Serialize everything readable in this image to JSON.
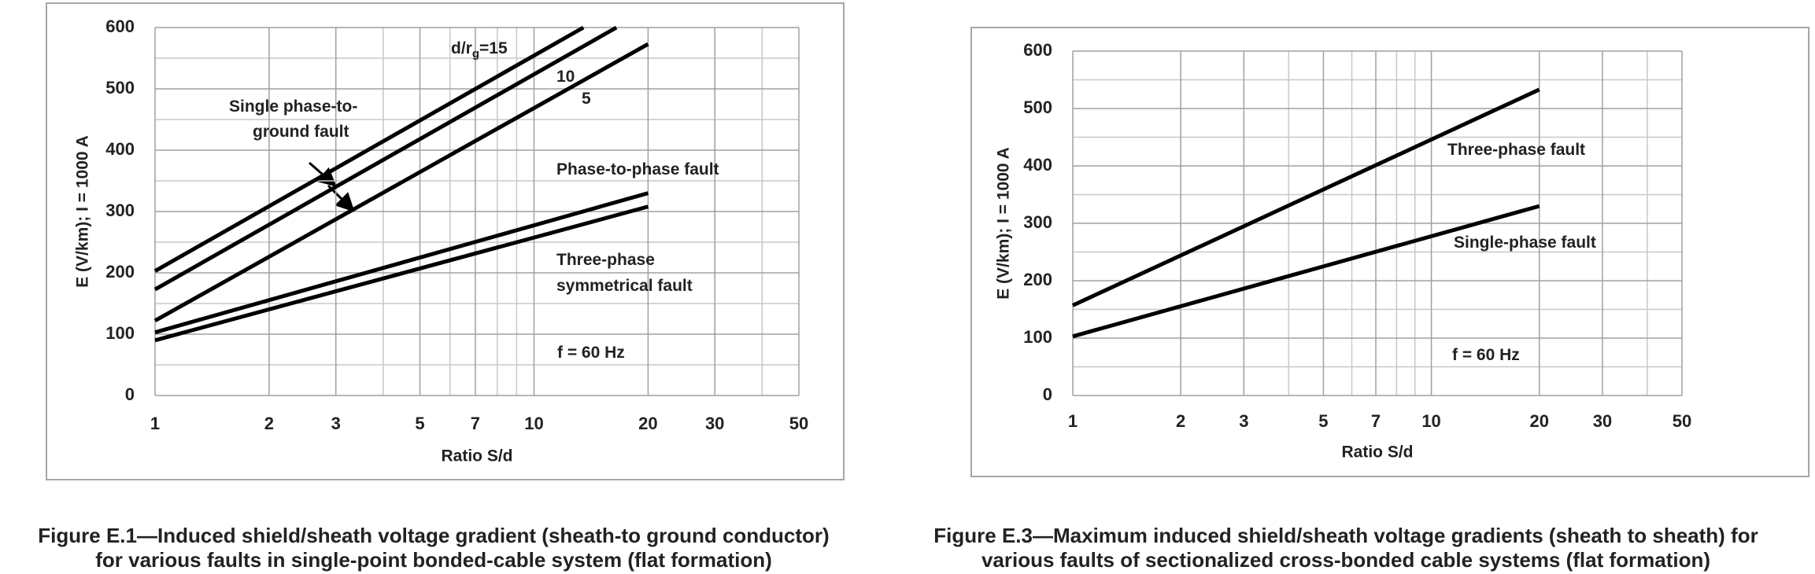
{
  "chart_data": [
    {
      "type": "line",
      "xlog": true,
      "grid": true,
      "xlim": [
        1,
        50
      ],
      "ylim": [
        0,
        600
      ],
      "xticks": [
        1,
        2,
        3,
        5,
        7,
        10,
        20,
        30,
        50
      ],
      "xminor": [
        4,
        6,
        8,
        9,
        40
      ],
      "yticks": [
        0,
        100,
        200,
        300,
        400,
        500,
        600
      ],
      "yminor": [
        50,
        150,
        250,
        350,
        450,
        550
      ],
      "xlabel": "Ratio S/d",
      "ylabel": "E (V/km); I = 1000 A",
      "series": [
        {
          "color": "#000000",
          "x": [
            1,
            13.5
          ],
          "values": [
            203,
            600
          ]
        },
        {
          "color": "#000000",
          "x": [
            1,
            16.5
          ],
          "values": [
            173,
            600
          ]
        },
        {
          "color": "#000000",
          "x": [
            1,
            20
          ],
          "values": [
            122,
            573
          ]
        },
        {
          "color": "#000000",
          "x": [
            1,
            20
          ],
          "values": [
            103,
            330
          ]
        },
        {
          "color": "#000000",
          "x": [
            1,
            20
          ],
          "values": [
            90,
            308
          ]
        }
      ],
      "annotations": [
        "d/r",
        "g",
        "=15",
        "10",
        "5",
        "Single phase-to-",
        "ground fault",
        "Phase-to-phase fault",
        "Three-phase",
        "symmetrical fault",
        "f = 60 Hz"
      ],
      "caption": [
        "Figure E.1—Induced shield/sheath voltage gradient (sheath-to ground conductor)",
        "for various faults in single-point bonded-cable system (flat formation)"
      ]
    },
    {
      "type": "line",
      "xlog": true,
      "grid": true,
      "xlim": [
        1,
        50
      ],
      "ylim": [
        0,
        600
      ],
      "xticks": [
        1,
        2,
        3,
        5,
        7,
        10,
        20,
        30,
        50
      ],
      "xminor": [
        4,
        6,
        8,
        9,
        40
      ],
      "yticks": [
        0,
        100,
        200,
        300,
        400,
        500,
        600
      ],
      "yminor": [
        50,
        150,
        250,
        350,
        450,
        550
      ],
      "xlabel": "Ratio S/d",
      "ylabel": "E (V/km); I = 1000 A",
      "series": [
        {
          "color": "#000000",
          "x": [
            1,
            20
          ],
          "values": [
            157,
            533
          ]
        },
        {
          "color": "#000000",
          "x": [
            1,
            20
          ],
          "values": [
            103,
            330
          ]
        }
      ],
      "annotations": [
        "Three-phase fault",
        "Single-phase fault",
        "f = 60 Hz"
      ],
      "caption": [
        "Figure E.3—Maximum induced shield/sheath voltage gradients (sheath to sheath) for",
        "various faults of sectionalized cross-bonded cable systems (flat formation)"
      ]
    }
  ]
}
